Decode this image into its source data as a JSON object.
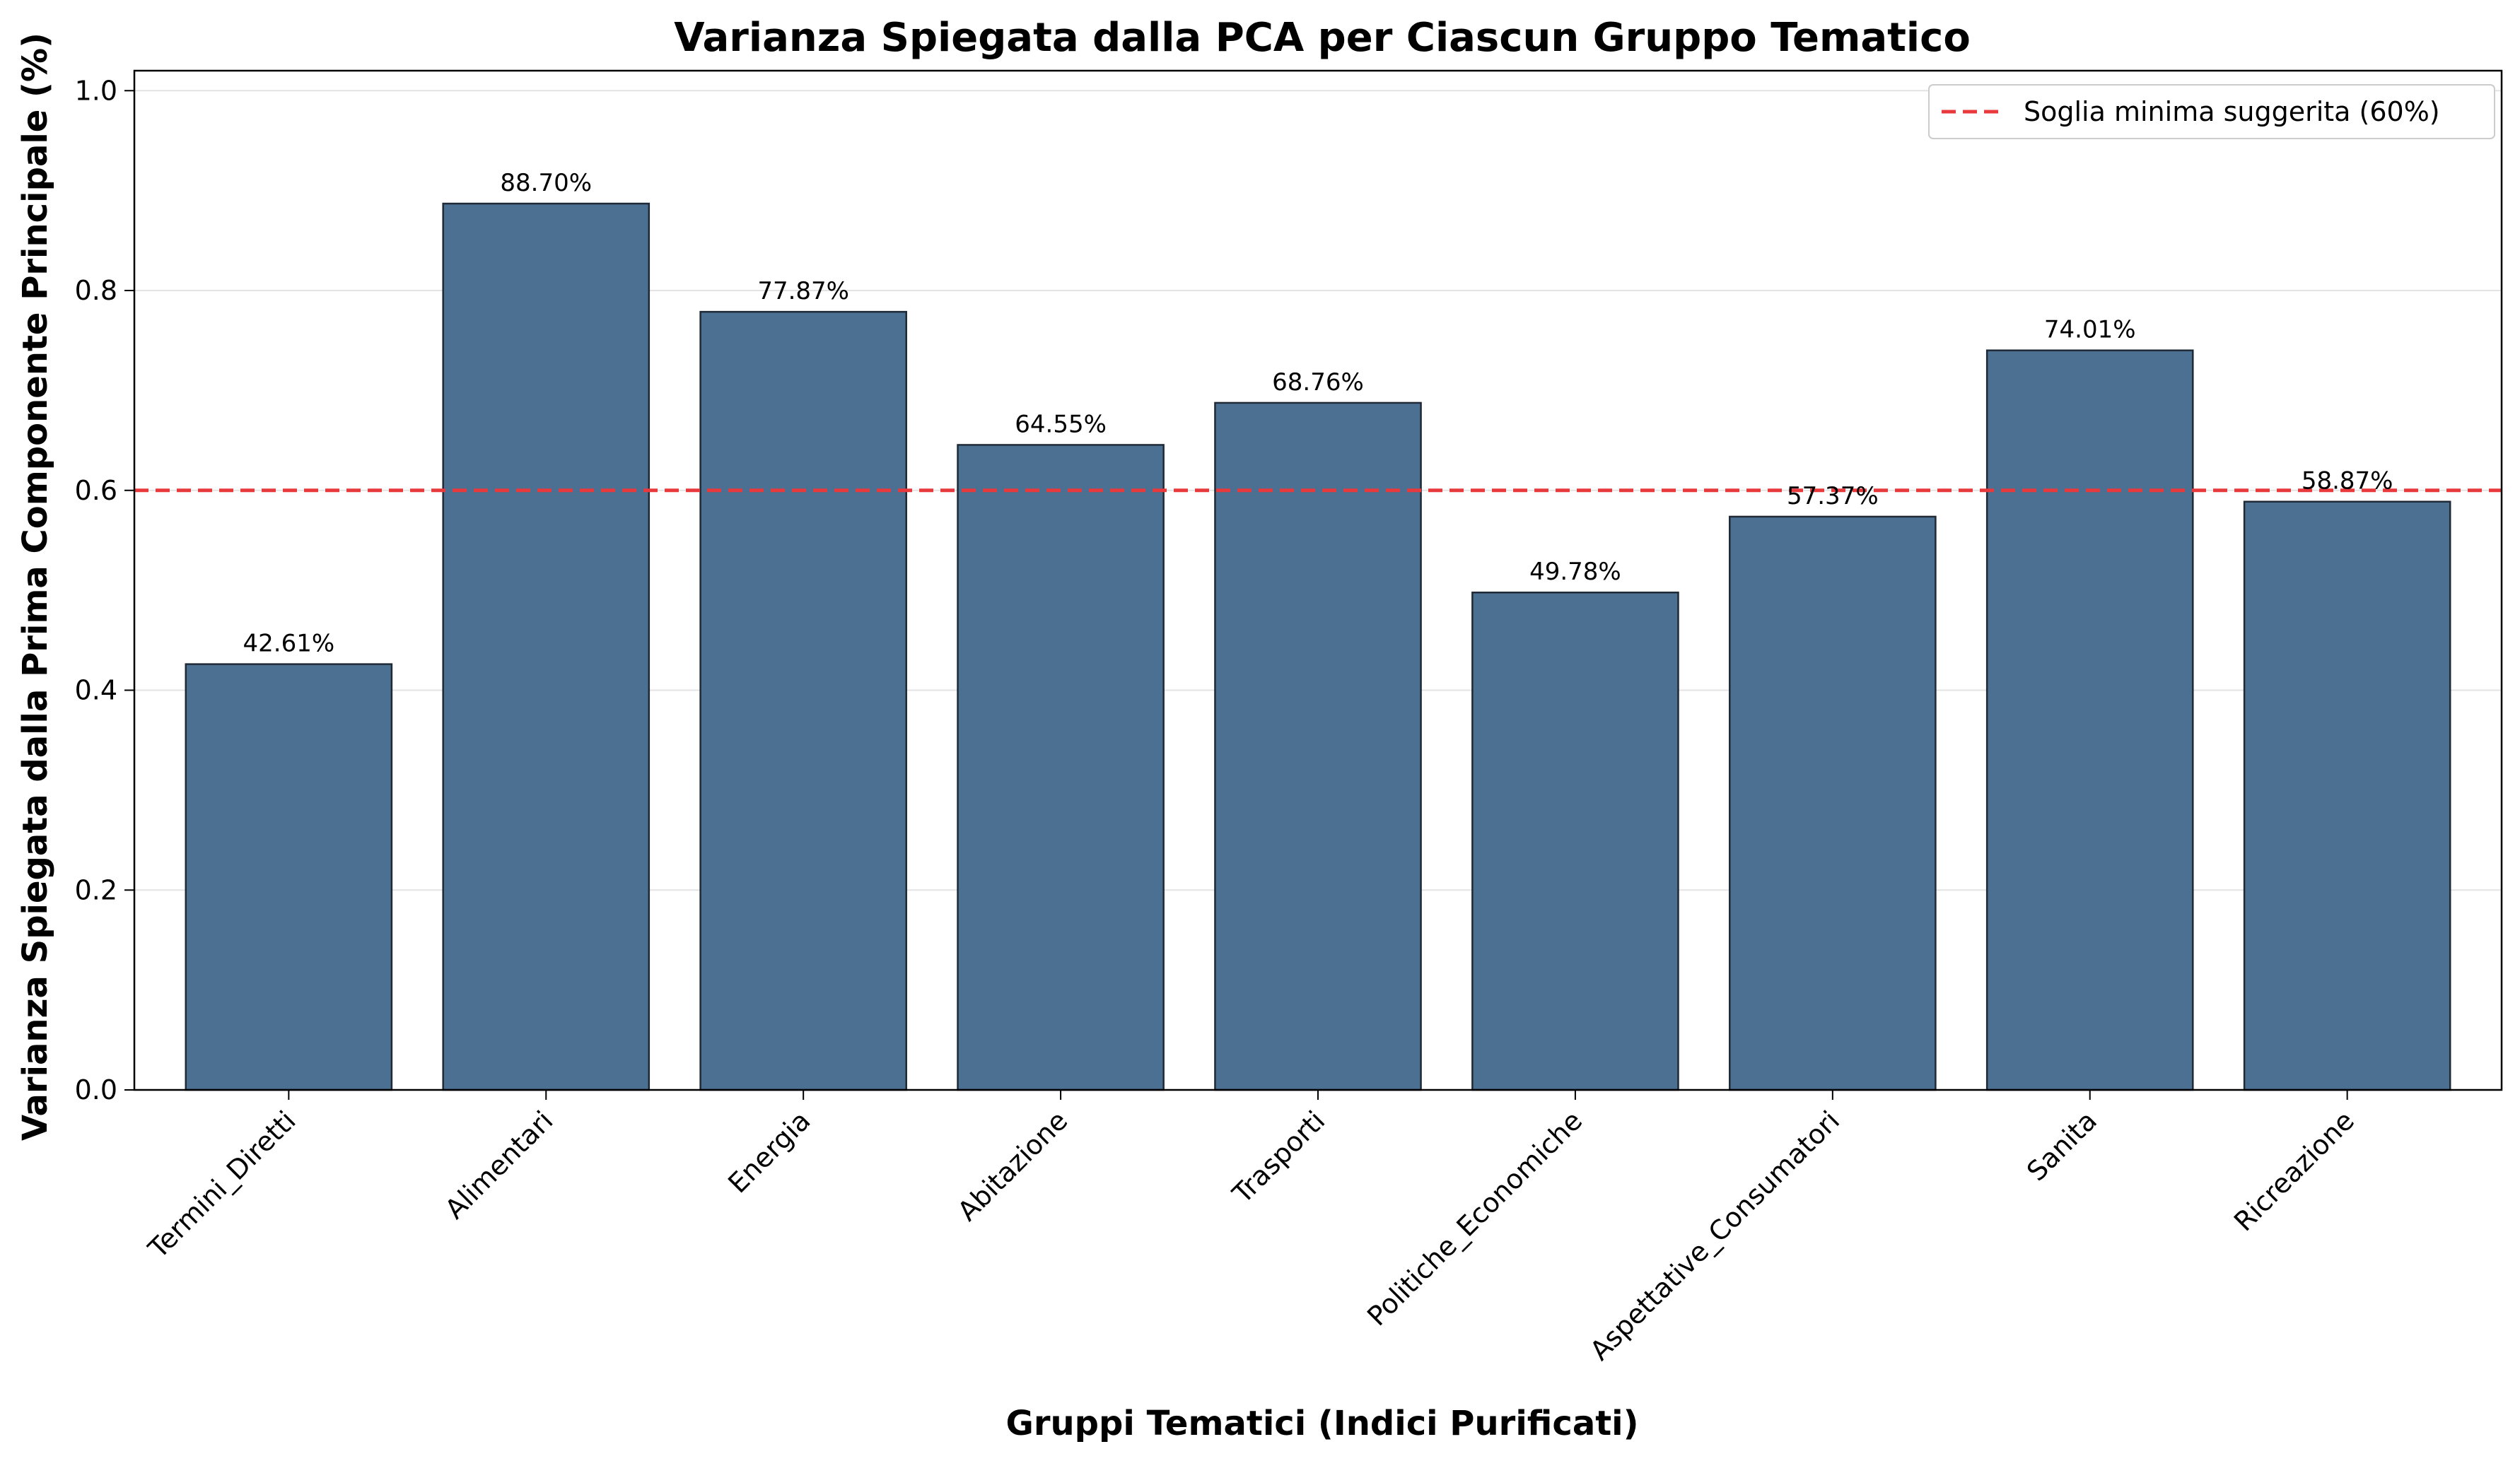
{
  "chart_data": {
    "type": "bar",
    "title": "Varianza Spiegata dalla PCA per Ciascun Gruppo Tematico",
    "xlabel": "Gruppi Tematici (Indici Purificati)",
    "ylabel": "Varianza Spiegata dalla Prima Componente Principale (%)",
    "categories": [
      "Termini_Diretti",
      "Alimentari",
      "Energia",
      "Abitazione",
      "Trasporti",
      "Politiche_Economiche",
      "Aspettative_Consumatori",
      "Sanita",
      "Ricreazione"
    ],
    "values": [
      0.4261,
      0.887,
      0.7787,
      0.6455,
      0.6876,
      0.4978,
      0.5737,
      0.7401,
      0.5887
    ],
    "data_labels": [
      "42.61%",
      "88.70%",
      "77.87%",
      "64.55%",
      "68.76%",
      "49.78%",
      "57.37%",
      "74.01%",
      "58.87%"
    ],
    "ylim": [
      0,
      1.02
    ],
    "yticks": [
      0.0,
      0.2,
      0.4,
      0.6,
      0.8,
      1.0
    ],
    "ytick_labels": [
      "0.0",
      "0.2",
      "0.4",
      "0.6",
      "0.8",
      "1.0"
    ],
    "grid": true,
    "grid_axis": "y",
    "bar_color": "#4c7091",
    "bar_edge_color": "#1f2a36",
    "reference_line": {
      "value": 0.6,
      "label": "Soglia minima suggerita (60%)",
      "color": "#e8393c",
      "style": "dashed"
    },
    "legend_position": "top-right"
  }
}
